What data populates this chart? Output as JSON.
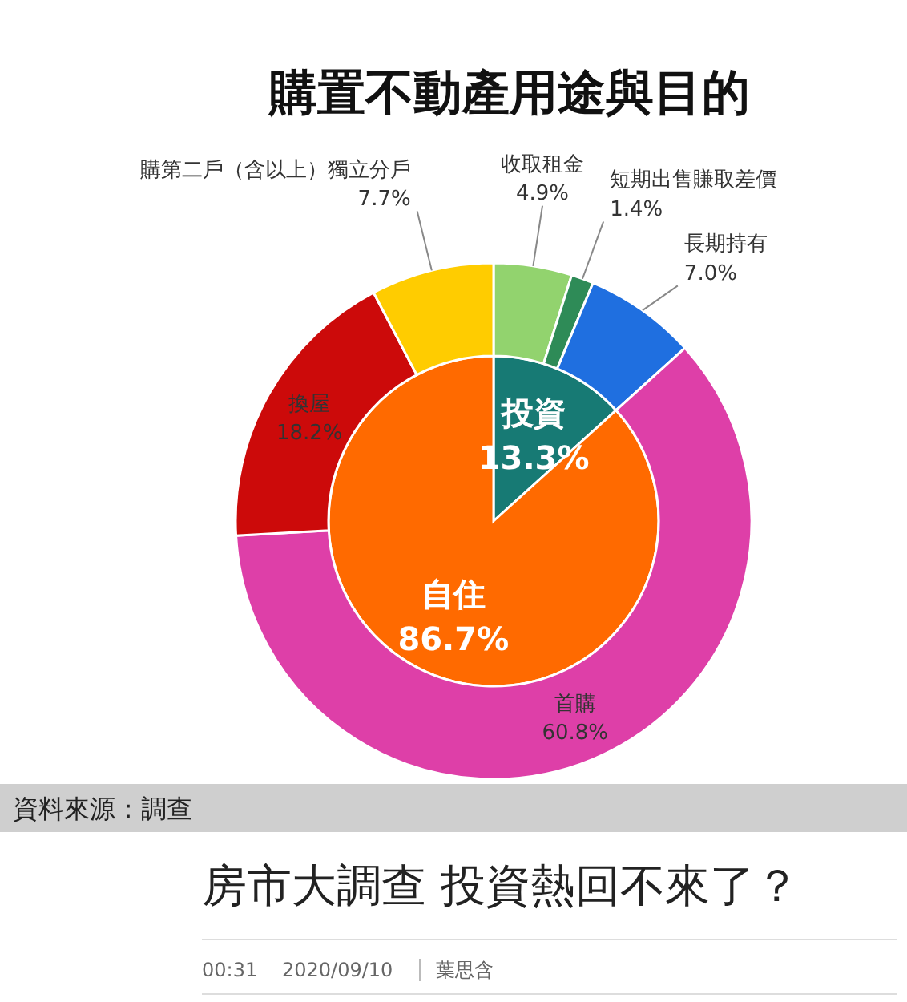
{
  "chart_data": [
    {
      "type": "pie",
      "title": "購置不動產用途與目的",
      "categories": [
        "投資",
        "自住"
      ],
      "values": [
        13.3,
        86.7
      ],
      "colors": [
        "#177a74",
        "#ff6a00"
      ],
      "value_labels": [
        "13.3%",
        "86.7%"
      ]
    },
    {
      "type": "donut",
      "categories": [
        "收取租金",
        "短期出售賺取差價",
        "長期持有",
        "首購",
        "換屋",
        "購第二戶（含以上）獨立分戶"
      ],
      "values": [
        4.9,
        1.4,
        7.0,
        60.8,
        18.2,
        7.7
      ],
      "colors": [
        "#92d36e",
        "#2e8b57",
        "#1f6fe0",
        "#de3fa8",
        "#cc0a0a",
        "#ffcc00"
      ],
      "value_labels": [
        "4.9%",
        "1.4%",
        "7.0%",
        "60.8%",
        "18.2%",
        "7.7%"
      ],
      "annotations": [
        "資料來源：調查",
        "房市大調查 投資熱回不來了？",
        "00:31",
        "2020/09/10",
        "葉思含"
      ]
    }
  ]
}
